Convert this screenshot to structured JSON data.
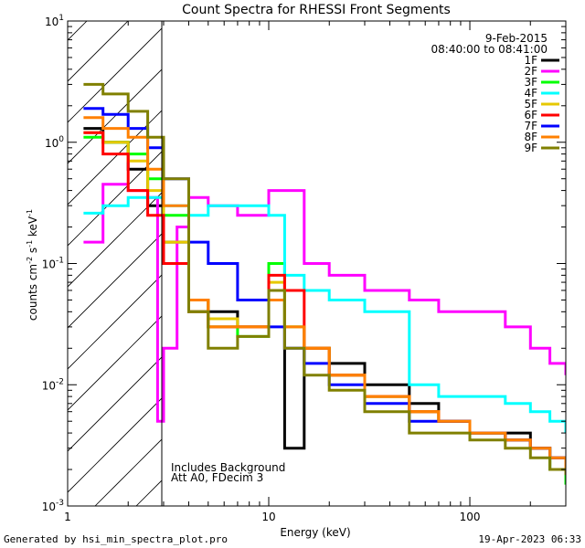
{
  "chart_data": {
    "type": "line",
    "title": "Count Spectra for RHESSI Front Segments",
    "xlabel": "Energy (keV)",
    "ylabel": "counts cm^-2 s^-1 keV^-1",
    "ylabel_parts": {
      "base": "counts cm",
      "e1": "-2",
      "mid": " s",
      "e2": "-1",
      "mid2": " keV",
      "e3": "-1"
    },
    "xscale": "log",
    "yscale": "log",
    "xlim": [
      1,
      300
    ],
    "ylim": [
      0.001,
      10
    ],
    "x_tick_labels": [
      "1",
      "10",
      "100"
    ],
    "y_tick_labels": [
      {
        "base": "10",
        "exp": "1"
      },
      {
        "base": "10",
        "exp": "0"
      },
      {
        "base": "10",
        "exp": "-1"
      },
      {
        "base": "10",
        "exp": "-2"
      },
      {
        "base": "10",
        "exp": "-3"
      }
    ],
    "date": "9-Feb-2015",
    "time_range": "08:40:00 to 08:41:00",
    "hatched_region_keV": [
      1,
      3
    ],
    "annotations": [
      "Includes Background",
      "Att A0, FDecim 3"
    ],
    "legend_position": "top-right",
    "series": [
      {
        "name": "1F",
        "color": "#000000",
        "x": [
          1.2,
          1.5,
          2.0,
          2.5,
          3.0,
          4.0,
          5.0,
          7.0,
          10.0,
          12.0,
          15.0,
          20.0,
          30.0,
          50.0,
          70.0,
          100.0,
          150.0,
          200.0,
          250.0,
          300.0
        ],
        "y": [
          1.3,
          1.0,
          0.6,
          0.3,
          0.15,
          0.05,
          0.04,
          0.03,
          0.05,
          0.003,
          0.02,
          0.015,
          0.01,
          0.007,
          0.005,
          0.004,
          0.004,
          0.003,
          0.002,
          0.002
        ]
      },
      {
        "name": "2F",
        "color": "#ff00ff",
        "x": [
          1.2,
          1.5,
          2.0,
          2.5,
          2.8,
          3.0,
          3.5,
          4.0,
          5.0,
          7.0,
          10.0,
          15.0,
          20.0,
          30.0,
          50.0,
          70.0,
          100.0,
          150.0,
          200.0,
          250.0,
          300.0
        ],
        "y": [
          0.15,
          0.45,
          0.4,
          0.35,
          0.005,
          0.02,
          0.2,
          0.35,
          0.3,
          0.25,
          0.4,
          0.1,
          0.08,
          0.06,
          0.05,
          0.04,
          0.04,
          0.03,
          0.02,
          0.015,
          0.012
        ]
      },
      {
        "name": "3F",
        "color": "#00ff00",
        "x": [
          1.2,
          1.5,
          2.0,
          2.5,
          3.0,
          4.0,
          5.0,
          7.0,
          10.0,
          12.0,
          15.0,
          20.0,
          30.0,
          50.0,
          70.0,
          100.0,
          150.0,
          200.0,
          250.0,
          300.0
        ],
        "y": [
          1.1,
          1.0,
          0.8,
          0.5,
          0.25,
          0.04,
          0.03,
          0.025,
          0.1,
          0.03,
          0.02,
          0.012,
          0.008,
          0.006,
          0.005,
          0.004,
          0.0035,
          0.003,
          0.002,
          0.0015
        ]
      },
      {
        "name": "4F",
        "color": "#00ffff",
        "x": [
          1.2,
          1.5,
          2.0,
          2.5,
          3.0,
          4.0,
          5.0,
          7.0,
          10.0,
          12.0,
          15.0,
          20.0,
          30.0,
          50.0,
          70.0,
          100.0,
          150.0,
          200.0,
          250.0,
          300.0
        ],
        "y": [
          0.26,
          0.3,
          0.35,
          0.35,
          0.3,
          0.25,
          0.3,
          0.3,
          0.25,
          0.08,
          0.06,
          0.05,
          0.04,
          0.01,
          0.008,
          0.008,
          0.007,
          0.006,
          0.005,
          0.004
        ]
      },
      {
        "name": "5F",
        "color": "#e6c800",
        "x": [
          1.2,
          1.5,
          2.0,
          2.5,
          3.0,
          4.0,
          5.0,
          7.0,
          10.0,
          12.0,
          15.0,
          20.0,
          30.0,
          50.0,
          70.0,
          100.0,
          150.0,
          200.0,
          250.0,
          300.0
        ],
        "y": [
          1.2,
          1.0,
          0.7,
          0.4,
          0.15,
          0.05,
          0.035,
          0.03,
          0.07,
          0.03,
          0.02,
          0.012,
          0.008,
          0.006,
          0.005,
          0.004,
          0.0035,
          0.003,
          0.0025,
          0.002
        ]
      },
      {
        "name": "6F",
        "color": "#ff0000",
        "x": [
          1.2,
          1.5,
          2.0,
          2.5,
          3.0,
          4.0,
          5.0,
          7.0,
          10.0,
          12.0,
          15.0,
          20.0,
          30.0,
          50.0,
          70.0,
          100.0,
          150.0,
          200.0,
          250.0,
          300.0
        ],
        "y": [
          1.2,
          0.8,
          0.4,
          0.25,
          0.1,
          0.04,
          0.03,
          0.03,
          0.08,
          0.06,
          0.02,
          0.012,
          0.008,
          0.006,
          0.005,
          0.004,
          0.0035,
          0.003,
          0.0025,
          0.002
        ]
      },
      {
        "name": "7F",
        "color": "#0000ff",
        "x": [
          1.2,
          1.5,
          2.0,
          2.5,
          3.0,
          4.0,
          5.0,
          7.0,
          10.0,
          12.0,
          15.0,
          20.0,
          30.0,
          50.0,
          70.0,
          100.0,
          150.0,
          200.0,
          250.0,
          300.0
        ],
        "y": [
          1.9,
          1.7,
          1.3,
          0.9,
          0.5,
          0.15,
          0.1,
          0.05,
          0.03,
          0.02,
          0.015,
          0.01,
          0.007,
          0.005,
          0.005,
          0.004,
          0.0035,
          0.003,
          0.0025,
          0.002
        ]
      },
      {
        "name": "8F",
        "color": "#ff8000",
        "x": [
          1.2,
          1.5,
          2.0,
          2.5,
          3.0,
          4.0,
          5.0,
          7.0,
          10.0,
          12.0,
          15.0,
          20.0,
          30.0,
          50.0,
          70.0,
          100.0,
          150.0,
          200.0,
          250.0,
          300.0
        ],
        "y": [
          1.6,
          1.3,
          1.1,
          0.6,
          0.3,
          0.05,
          0.03,
          0.03,
          0.05,
          0.03,
          0.02,
          0.012,
          0.008,
          0.006,
          0.005,
          0.004,
          0.0035,
          0.003,
          0.0025,
          0.002
        ]
      },
      {
        "name": "9F",
        "color": "#808000",
        "x": [
          1.2,
          1.5,
          2.0,
          2.5,
          3.0,
          4.0,
          5.0,
          7.0,
          10.0,
          12.0,
          15.0,
          20.0,
          30.0,
          50.0,
          70.0,
          100.0,
          150.0,
          200.0,
          250.0,
          300.0
        ],
        "y": [
          3.0,
          2.5,
          1.8,
          1.1,
          0.5,
          0.04,
          0.02,
          0.025,
          0.06,
          0.02,
          0.012,
          0.009,
          0.006,
          0.004,
          0.004,
          0.0035,
          0.003,
          0.0025,
          0.002,
          0.0018
        ]
      }
    ]
  },
  "footer": {
    "generated_by": "Generated by hsi_min_spectra_plot.pro",
    "timestamp": "19-Apr-2023 06:33"
  }
}
